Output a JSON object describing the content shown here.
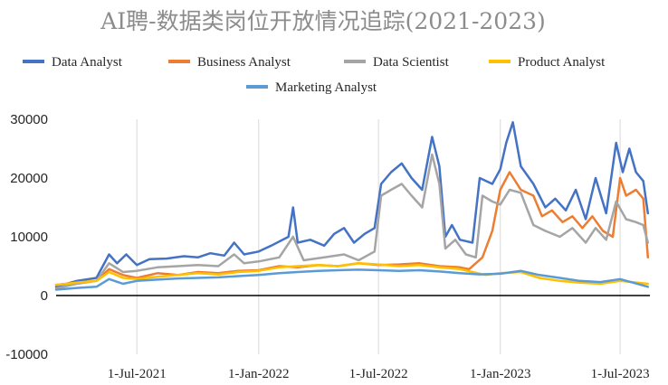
{
  "chart_data": {
    "type": "line",
    "title": "AI聘-数据类岗位开放情况追踪(2021-2023)",
    "xlabel": "",
    "ylabel": "",
    "ylim": [
      -10000,
      30000
    ],
    "yticks": [
      "30000",
      "20000",
      "10000",
      "0",
      "-10000"
    ],
    "ytick_values": [
      30000,
      20000,
      10000,
      0,
      -10000
    ],
    "xticks": [
      "1-Jul-2021",
      "1-Jan-2022",
      "1-Jul-2022",
      "1-Jan-2023",
      "1-Jul-2023"
    ],
    "xtick_values": [
      "2021-07-01",
      "2022-01-01",
      "2022-07-01",
      "2023-01-01",
      "2023-07-01"
    ],
    "xlim": [
      "2021-03-01",
      "2023-08-15"
    ],
    "grid": "vertical",
    "legend_position": "top",
    "series": [
      {
        "name": "Data Analyst",
        "color": "#4472C4",
        "points": [
          [
            "2021-03-01",
            1500
          ],
          [
            "2021-04-01",
            2500
          ],
          [
            "2021-05-01",
            3000
          ],
          [
            "2021-05-20",
            7000
          ],
          [
            "2021-06-01",
            5500
          ],
          [
            "2021-06-15",
            7000
          ],
          [
            "2021-07-01",
            5200
          ],
          [
            "2021-07-20",
            6200
          ],
          [
            "2021-08-15",
            6300
          ],
          [
            "2021-09-10",
            6700
          ],
          [
            "2021-10-01",
            6500
          ],
          [
            "2021-10-20",
            7200
          ],
          [
            "2021-11-10",
            6800
          ],
          [
            "2021-11-25",
            9000
          ],
          [
            "2021-12-10",
            7000
          ],
          [
            "2022-01-01",
            7500
          ],
          [
            "2022-01-20",
            8500
          ],
          [
            "2022-02-15",
            10000
          ],
          [
            "2022-02-22",
            15000
          ],
          [
            "2022-03-01",
            9000
          ],
          [
            "2022-03-20",
            9500
          ],
          [
            "2022-04-10",
            8500
          ],
          [
            "2022-04-25",
            10500
          ],
          [
            "2022-05-10",
            11500
          ],
          [
            "2022-05-25",
            9000
          ],
          [
            "2022-06-10",
            10500
          ],
          [
            "2022-06-25",
            11500
          ],
          [
            "2022-07-05",
            19000
          ],
          [
            "2022-07-20",
            21000
          ],
          [
            "2022-08-05",
            22500
          ],
          [
            "2022-08-20",
            20000
          ],
          [
            "2022-09-05",
            18000
          ],
          [
            "2022-09-20",
            27000
          ],
          [
            "2022-10-01",
            22000
          ],
          [
            "2022-10-10",
            10000
          ],
          [
            "2022-10-20",
            12000
          ],
          [
            "2022-11-01",
            9500
          ],
          [
            "2022-11-20",
            9000
          ],
          [
            "2022-12-01",
            20000
          ],
          [
            "2022-12-20",
            19000
          ],
          [
            "2023-01-01",
            21500
          ],
          [
            "2023-01-10",
            26000
          ],
          [
            "2023-01-20",
            29500
          ],
          [
            "2023-02-01",
            22000
          ],
          [
            "2023-02-20",
            19000
          ],
          [
            "2023-03-10",
            15000
          ],
          [
            "2023-03-25",
            16500
          ],
          [
            "2023-04-10",
            14500
          ],
          [
            "2023-04-25",
            18000
          ],
          [
            "2023-05-10",
            13000
          ],
          [
            "2023-05-25",
            20000
          ],
          [
            "2023-06-10",
            14000
          ],
          [
            "2023-06-25",
            26000
          ],
          [
            "2023-07-05",
            21000
          ],
          [
            "2023-07-15",
            25000
          ],
          [
            "2023-07-25",
            21000
          ],
          [
            "2023-08-05",
            19500
          ],
          [
            "2023-08-12",
            14000
          ]
        ]
      },
      {
        "name": "Business Analyst",
        "color": "#ED7D31",
        "points": [
          [
            "2021-03-01",
            1800
          ],
          [
            "2021-04-01",
            2200
          ],
          [
            "2021-05-01",
            2500
          ],
          [
            "2021-05-20",
            4500
          ],
          [
            "2021-06-10",
            3500
          ],
          [
            "2021-07-01",
            3000
          ],
          [
            "2021-08-01",
            3800
          ],
          [
            "2021-09-01",
            3500
          ],
          [
            "2021-10-01",
            4000
          ],
          [
            "2021-11-01",
            3800
          ],
          [
            "2021-12-01",
            4200
          ],
          [
            "2022-01-01",
            4300
          ],
          [
            "2022-02-01",
            5000
          ],
          [
            "2022-03-01",
            4800
          ],
          [
            "2022-04-01",
            5200
          ],
          [
            "2022-05-01",
            5000
          ],
          [
            "2022-06-01",
            5500
          ],
          [
            "2022-07-01",
            5200
          ],
          [
            "2022-08-01",
            5300
          ],
          [
            "2022-09-01",
            5500
          ],
          [
            "2022-10-01",
            5000
          ],
          [
            "2022-11-01",
            4800
          ],
          [
            "2022-11-15",
            4500
          ],
          [
            "2022-12-05",
            6500
          ],
          [
            "2022-12-20",
            11000
          ],
          [
            "2023-01-01",
            18000
          ],
          [
            "2023-01-15",
            21000
          ],
          [
            "2023-02-01",
            18000
          ],
          [
            "2023-02-20",
            17000
          ],
          [
            "2023-03-05",
            13500
          ],
          [
            "2023-03-20",
            14500
          ],
          [
            "2023-04-05",
            12500
          ],
          [
            "2023-04-20",
            13500
          ],
          [
            "2023-05-05",
            11500
          ],
          [
            "2023-05-20",
            13500
          ],
          [
            "2023-06-05",
            11000
          ],
          [
            "2023-06-20",
            10000
          ],
          [
            "2023-07-01",
            20000
          ],
          [
            "2023-07-10",
            17000
          ],
          [
            "2023-07-25",
            18000
          ],
          [
            "2023-08-05",
            16500
          ],
          [
            "2023-08-12",
            6500
          ]
        ]
      },
      {
        "name": "Data Scientist",
        "color": "#A5A5A5",
        "points": [
          [
            "2021-03-01",
            1200
          ],
          [
            "2021-04-01",
            2000
          ],
          [
            "2021-05-01",
            2500
          ],
          [
            "2021-05-20",
            5500
          ],
          [
            "2021-06-10",
            4000
          ],
          [
            "2021-07-01",
            4200
          ],
          [
            "2021-08-01",
            4800
          ],
          [
            "2021-09-01",
            5000
          ],
          [
            "2021-10-01",
            5200
          ],
          [
            "2021-11-01",
            5000
          ],
          [
            "2021-11-25",
            7000
          ],
          [
            "2021-12-10",
            5500
          ],
          [
            "2022-01-01",
            5800
          ],
          [
            "2022-02-01",
            6500
          ],
          [
            "2022-02-22",
            10000
          ],
          [
            "2022-03-10",
            6000
          ],
          [
            "2022-04-10",
            6500
          ],
          [
            "2022-05-10",
            7000
          ],
          [
            "2022-06-01",
            6000
          ],
          [
            "2022-06-25",
            7500
          ],
          [
            "2022-07-05",
            17000
          ],
          [
            "2022-07-20",
            18000
          ],
          [
            "2022-08-05",
            19000
          ],
          [
            "2022-08-20",
            17000
          ],
          [
            "2022-09-05",
            15000
          ],
          [
            "2022-09-20",
            24000
          ],
          [
            "2022-10-01",
            19000
          ],
          [
            "2022-10-10",
            8000
          ],
          [
            "2022-10-25",
            9500
          ],
          [
            "2022-11-10",
            7000
          ],
          [
            "2022-11-25",
            6500
          ],
          [
            "2022-12-05",
            17000
          ],
          [
            "2022-12-20",
            16000
          ],
          [
            "2023-01-01",
            15500
          ],
          [
            "2023-01-15",
            18000
          ],
          [
            "2023-02-01",
            17500
          ],
          [
            "2023-02-20",
            12000
          ],
          [
            "2023-03-10",
            11000
          ],
          [
            "2023-04-01",
            10000
          ],
          [
            "2023-04-20",
            11500
          ],
          [
            "2023-05-10",
            9000
          ],
          [
            "2023-05-25",
            11500
          ],
          [
            "2023-06-10",
            9500
          ],
          [
            "2023-06-25",
            16000
          ],
          [
            "2023-07-10",
            13000
          ],
          [
            "2023-07-25",
            12500
          ],
          [
            "2023-08-05",
            12000
          ],
          [
            "2023-08-12",
            9000
          ]
        ]
      },
      {
        "name": "Product Analyst",
        "color": "#FFC000",
        "points": [
          [
            "2021-03-01",
            1800
          ],
          [
            "2021-04-01",
            2200
          ],
          [
            "2021-05-01",
            2500
          ],
          [
            "2021-05-20",
            4000
          ],
          [
            "2021-06-10",
            3000
          ],
          [
            "2021-07-01",
            2800
          ],
          [
            "2021-08-01",
            3200
          ],
          [
            "2021-09-01",
            3500
          ],
          [
            "2021-10-01",
            3800
          ],
          [
            "2021-11-01",
            3600
          ],
          [
            "2021-12-01",
            4000
          ],
          [
            "2022-01-01",
            4200
          ],
          [
            "2022-02-01",
            4800
          ],
          [
            "2022-03-01",
            5000
          ],
          [
            "2022-04-01",
            5200
          ],
          [
            "2022-05-01",
            5000
          ],
          [
            "2022-06-01",
            5500
          ],
          [
            "2022-07-01",
            5300
          ],
          [
            "2022-08-01",
            5000
          ],
          [
            "2022-09-01",
            5200
          ],
          [
            "2022-10-01",
            4800
          ],
          [
            "2022-11-01",
            4500
          ],
          [
            "2022-11-20",
            4000
          ],
          [
            "2022-12-10",
            3500
          ],
          [
            "2023-01-01",
            3800
          ],
          [
            "2023-02-01",
            4000
          ],
          [
            "2023-03-01",
            3000
          ],
          [
            "2023-04-01",
            2500
          ],
          [
            "2023-05-01",
            2200
          ],
          [
            "2023-06-01",
            2000
          ],
          [
            "2023-07-01",
            2500
          ],
          [
            "2023-08-12",
            2000
          ]
        ]
      },
      {
        "name": "Marketing Analyst",
        "color": "#5B9BD5",
        "points": [
          [
            "2021-03-01",
            1000
          ],
          [
            "2021-04-01",
            1300
          ],
          [
            "2021-05-01",
            1500
          ],
          [
            "2021-05-20",
            2800
          ],
          [
            "2021-06-10",
            2000
          ],
          [
            "2021-07-01",
            2500
          ],
          [
            "2021-08-01",
            2700
          ],
          [
            "2021-09-01",
            2900
          ],
          [
            "2021-10-01",
            3000
          ],
          [
            "2021-11-01",
            3100
          ],
          [
            "2021-12-01",
            3300
          ],
          [
            "2022-01-01",
            3500
          ],
          [
            "2022-02-01",
            3800
          ],
          [
            "2022-03-01",
            4000
          ],
          [
            "2022-04-01",
            4200
          ],
          [
            "2022-05-01",
            4300
          ],
          [
            "2022-06-01",
            4400
          ],
          [
            "2022-07-01",
            4300
          ],
          [
            "2022-08-01",
            4200
          ],
          [
            "2022-09-01",
            4300
          ],
          [
            "2022-10-01",
            4100
          ],
          [
            "2022-11-01",
            3800
          ],
          [
            "2022-12-01",
            3600
          ],
          [
            "2023-01-01",
            3700
          ],
          [
            "2023-02-01",
            4200
          ],
          [
            "2023-03-01",
            3500
          ],
          [
            "2023-04-01",
            3000
          ],
          [
            "2023-05-01",
            2500
          ],
          [
            "2023-06-01",
            2300
          ],
          [
            "2023-07-01",
            2800
          ],
          [
            "2023-08-12",
            1500
          ]
        ]
      }
    ]
  }
}
